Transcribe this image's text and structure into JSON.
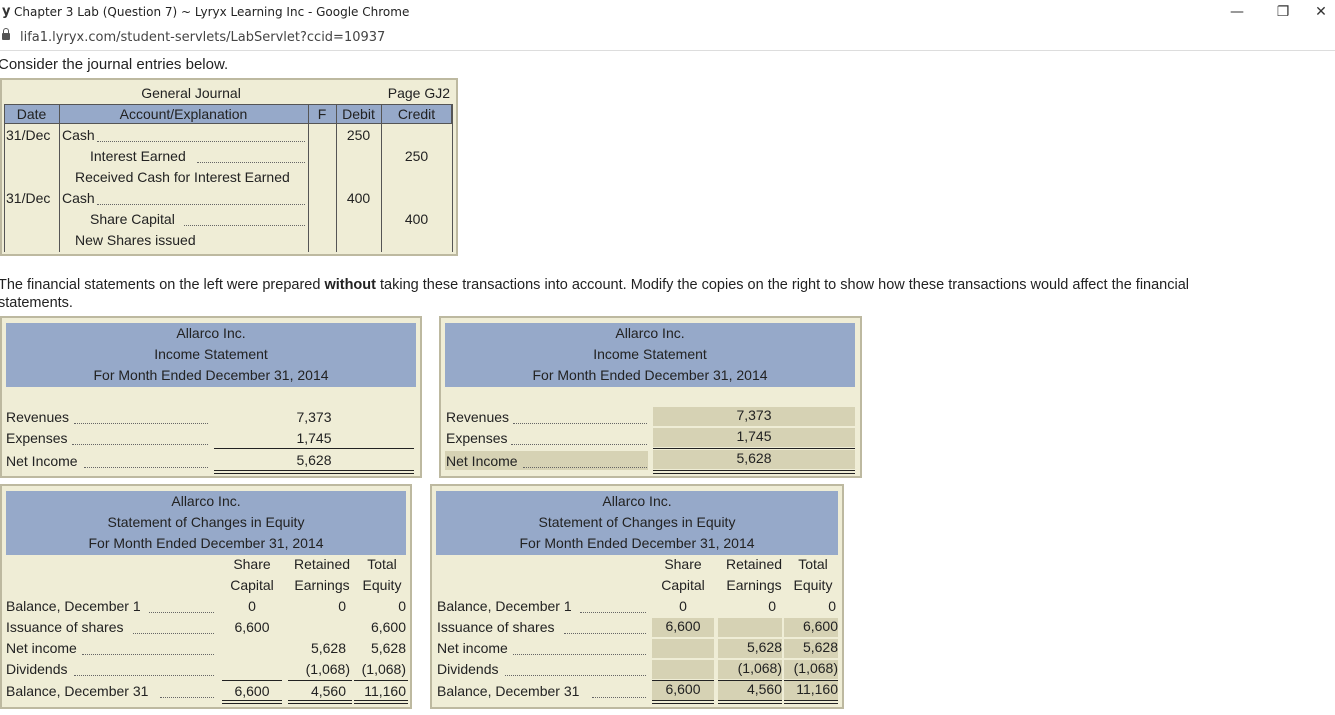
{
  "browser": {
    "title": "Chapter 3 Lab (Question 7) ~ Lyryx Learning Inc - Google Chrome",
    "url": "lifa1.lyryx.com/student-servlets/LabServlet?ccid=10937",
    "minimize": "—",
    "restore": "❐",
    "close": "✕"
  },
  "intro": "Consider the journal entries below.",
  "journal": {
    "title": "General Journal",
    "page": "Page GJ2",
    "headers": {
      "date": "Date",
      "account": "Account/Explanation",
      "f": "F",
      "debit": "Debit",
      "credit": "Credit"
    },
    "rows": [
      {
        "date": "31/Dec",
        "account": "Cash",
        "debit": "250",
        "credit": ""
      },
      {
        "date": "",
        "account": "Interest Earned",
        "debit": "",
        "credit": "250"
      },
      {
        "date": "",
        "account": "Received Cash for Interest Earned",
        "debit": "",
        "credit": ""
      },
      {
        "date": "31/Dec",
        "account": "Cash",
        "debit": "400",
        "credit": ""
      },
      {
        "date": "",
        "account": "Share Capital",
        "debit": "",
        "credit": "400"
      },
      {
        "date": "",
        "account": "New Shares issued",
        "debit": "",
        "credit": ""
      }
    ]
  },
  "instruction": {
    "part1": "The financial statements on the left were prepared ",
    "bold": "without",
    "part2": " taking these transactions into account. Modify the copies on the right to show how these transactions would affect the financial",
    "line2": "statements."
  },
  "income_left": {
    "company": "Allarco Inc.",
    "name": "Income Statement",
    "period": "For Month Ended December 31, 2014",
    "rows": [
      {
        "label": "Revenues",
        "value": "7,373"
      },
      {
        "label": "Expenses",
        "value": "1,745"
      },
      {
        "label": "Net Income",
        "value": "5,628"
      }
    ]
  },
  "income_right": {
    "company": "Allarco Inc.",
    "name": "Income Statement",
    "period": "For Month Ended December 31, 2014",
    "rows": [
      {
        "label": "Revenues",
        "value": "7,373"
      },
      {
        "label": "Expenses",
        "value": "1,745"
      },
      {
        "label": "Net Income",
        "value": "5,628"
      }
    ]
  },
  "equity_left": {
    "company": "Allarco Inc.",
    "name": "Statement of Changes in Equity",
    "period": "For Month Ended December 31, 2014",
    "col1": [
      "Share",
      "Capital"
    ],
    "col2": [
      "Retained",
      "Earnings"
    ],
    "col3": [
      "Total",
      "Equity"
    ],
    "rows": [
      {
        "label": "Balance, December 1",
        "share": "0",
        "retained": "0",
        "total": "0"
      },
      {
        "label": "Issuance of shares",
        "share": "6,600",
        "retained": "",
        "total": "6,600"
      },
      {
        "label": "Net income",
        "share": "",
        "retained": "5,628",
        "total": "5,628"
      },
      {
        "label": "Dividends",
        "share": "",
        "retained": "(1,068)",
        "total": "(1,068)"
      },
      {
        "label": "Balance, December 31",
        "share": "6,600",
        "retained": "4,560",
        "total": "11,160"
      }
    ]
  },
  "equity_right": {
    "company": "Allarco Inc.",
    "name": "Statement of Changes in Equity",
    "period": "For Month Ended December 31, 2014",
    "col1": [
      "Share",
      "Capital"
    ],
    "col2": [
      "Retained",
      "Earnings"
    ],
    "col3": [
      "Total",
      "Equity"
    ],
    "rows": [
      {
        "label": "Balance, December 1",
        "share": "0",
        "retained": "0",
        "total": "0"
      },
      {
        "label": "Issuance of shares",
        "share": "6,600",
        "retained": "",
        "total": "6,600"
      },
      {
        "label": "Net income",
        "share": "",
        "retained": "5,628",
        "total": "5,628"
      },
      {
        "label": "Dividends",
        "share": "",
        "retained": "(1,068)",
        "total": "(1,068)"
      },
      {
        "label": "Balance, December 31",
        "share": "6,600",
        "retained": "4,560",
        "total": "11,160"
      }
    ]
  }
}
